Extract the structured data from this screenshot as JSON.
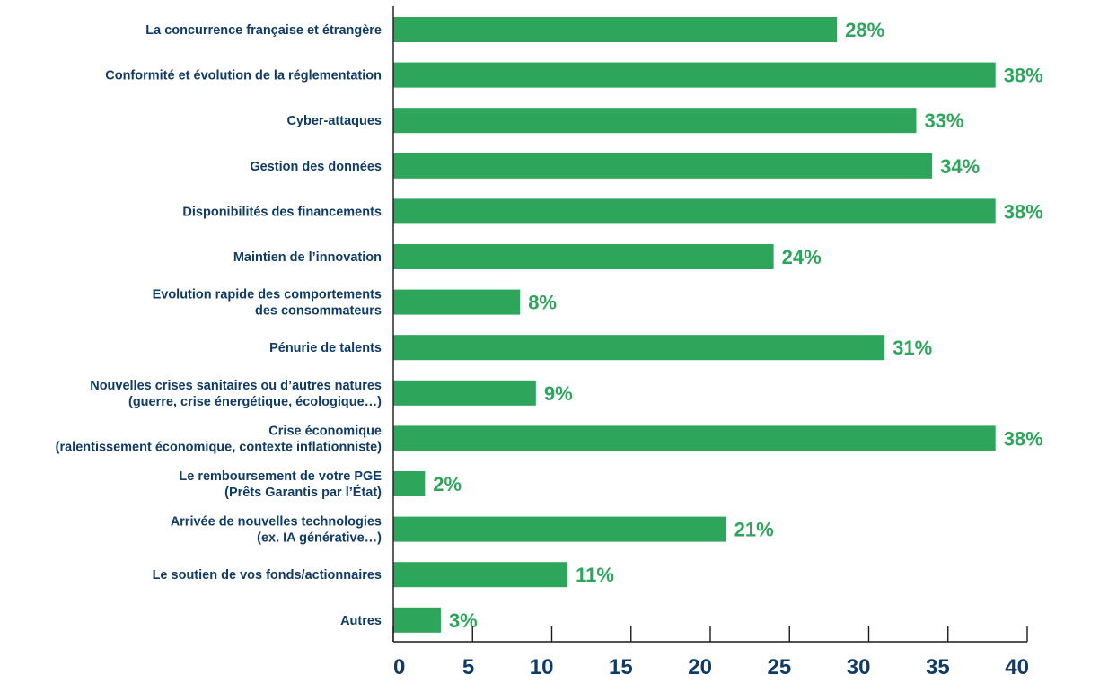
{
  "chart_data": {
    "type": "bar",
    "orientation": "horizontal",
    "categories": [
      [
        "La concurrence française et étrangère"
      ],
      [
        "Conformité et évolution de la réglementation"
      ],
      [
        "Cyber-attaques"
      ],
      [
        "Gestion des données"
      ],
      [
        "Disponibilités des financements"
      ],
      [
        "Maintien de l’innovation"
      ],
      [
        "Evolution rapide des comportements",
        "des consommateurs"
      ],
      [
        "Pénurie de talents"
      ],
      [
        "Nouvelles crises sanitaires ou d’autres natures",
        "(guerre, crise énergétique, écologique…)"
      ],
      [
        "Crise économique",
        "(ralentissement économique, contexte inflationniste)"
      ],
      [
        "Le remboursement de votre PGE",
        "(Prêts Garantis par l’État)"
      ],
      [
        "Arrivée de nouvelles technologies",
        "(ex. IA générative…)"
      ],
      [
        "Le soutien de vos fonds/actionnaires"
      ],
      [
        "Autres"
      ]
    ],
    "values": [
      28,
      38,
      33,
      34,
      38,
      24,
      8,
      31,
      9,
      38,
      2,
      21,
      11,
      3
    ],
    "value_labels": [
      "28%",
      "38%",
      "33%",
      "34%",
      "38%",
      "24%",
      "8%",
      "31%",
      "9%",
      "38%",
      "2%",
      "21%",
      "11%",
      "3%"
    ],
    "xlim": [
      0,
      40
    ],
    "x_ticks": [
      0,
      5,
      10,
      15,
      20,
      25,
      30,
      35,
      40
    ],
    "x_tick_labels": [
      "0",
      "5",
      "10",
      "15",
      "20",
      "25",
      "30",
      "35",
      "40"
    ],
    "title": "",
    "xlabel": "",
    "ylabel": "",
    "grid": false,
    "legend": "none",
    "colors": {
      "bar": "#2da55a",
      "value_label": "#2da55a",
      "category_label": "#0f3b66",
      "tick_label": "#0f3b66",
      "axis": "#1a1a1a"
    }
  }
}
